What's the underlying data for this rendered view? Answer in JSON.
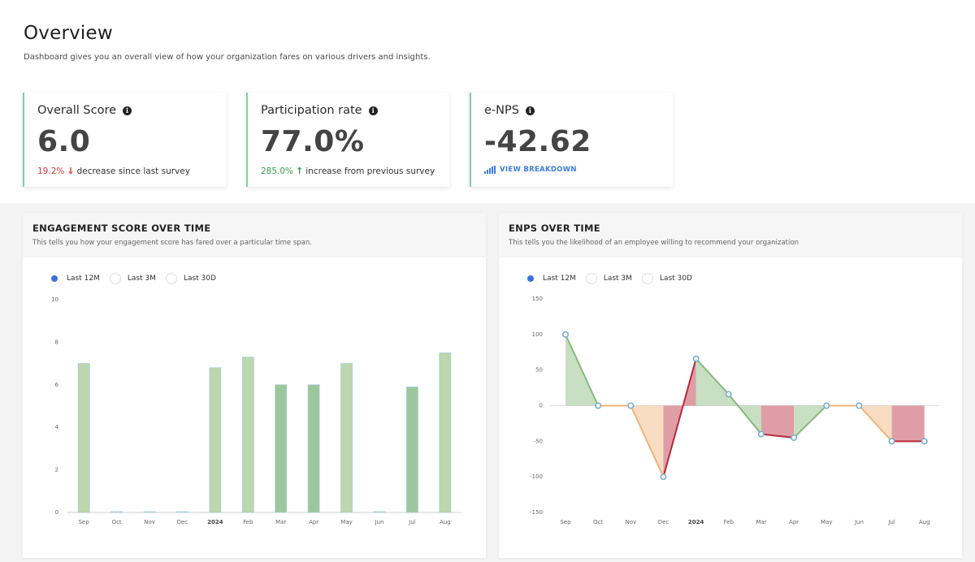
{
  "header": {
    "title": "Overview",
    "subtitle": "Dashboard gives you an overall view of how your organization fares on various drivers and insights."
  },
  "cards": {
    "overall": {
      "label": "Overall Score",
      "value": "6.0",
      "pct": "19.2%",
      "arrow": "↓",
      "note": "decrease since last survey"
    },
    "participation": {
      "label": "Participation rate",
      "value": "77.0%",
      "pct": "285.0%",
      "arrow": "↑",
      "note": "increase from previous survey"
    },
    "enps": {
      "label": "e-NPS",
      "value": "-42.62",
      "link": "VIEW BREAKDOWN"
    }
  },
  "colors": {
    "accent": "#3d6fe0",
    "card_border": "#7fcfa3",
    "negative": "#d9383a",
    "positive": "#3a9a4a"
  },
  "icons": {
    "info": "info-icon",
    "bars": "signal-bars-icon",
    "arrow_down": "arrow-down-icon",
    "arrow_up": "arrow-up-icon"
  },
  "engagement": {
    "title": "ENGAGEMENT SCORE OVER TIME",
    "subtitle": "This tells you how your engagement score has fared over a particular time span.",
    "ranges": [
      "Last 12M",
      "Last 3M",
      "Last 30D"
    ],
    "selected_range": "Last 12M"
  },
  "enps_panel": {
    "title": "ENPS OVER TIME",
    "subtitle": "This tells you the likelihood of an employee willing to recommend your organization",
    "ranges": [
      "Last 12M",
      "Last 3M",
      "Last 30D"
    ],
    "selected_range": "Last 12M"
  },
  "chart_data": [
    {
      "type": "bar",
      "title": "ENGAGEMENT SCORE OVER TIME",
      "categories": [
        "Sep",
        "Oct",
        "Nov",
        "Dec",
        "2024",
        "Feb",
        "Mar",
        "Apr",
        "May",
        "Jun",
        "Jul",
        "Aug"
      ],
      "values": [
        7.0,
        0,
        0,
        0,
        6.8,
        7.3,
        6.0,
        6.0,
        7.0,
        0,
        5.9,
        7.5
      ],
      "yticks": [
        0,
        2,
        4,
        6,
        8,
        10
      ],
      "ylim": [
        0,
        10
      ],
      "bold_categories": [
        "2024"
      ],
      "bar_color": "#bcd6ad",
      "bar_color_dark": "#9cc79c"
    },
    {
      "type": "line",
      "title": "ENPS OVER TIME",
      "categories": [
        "Sep",
        "Oct",
        "Nov",
        "Dec",
        "2024",
        "Feb",
        "Mar",
        "Apr",
        "May",
        "Jun",
        "Jul",
        "Aug"
      ],
      "values": [
        100,
        0,
        0,
        -100,
        66,
        16,
        -40,
        -45,
        0,
        0,
        -50,
        -50
      ],
      "yticks": [
        -150,
        -100,
        -50,
        0,
        50,
        100,
        150
      ],
      "ylim": [
        -150,
        150
      ],
      "bold_categories": [
        "2024"
      ],
      "positive_color": "#86b97d",
      "negative_color": "#b8283a",
      "neutral_color": "#f0b47a"
    }
  ]
}
